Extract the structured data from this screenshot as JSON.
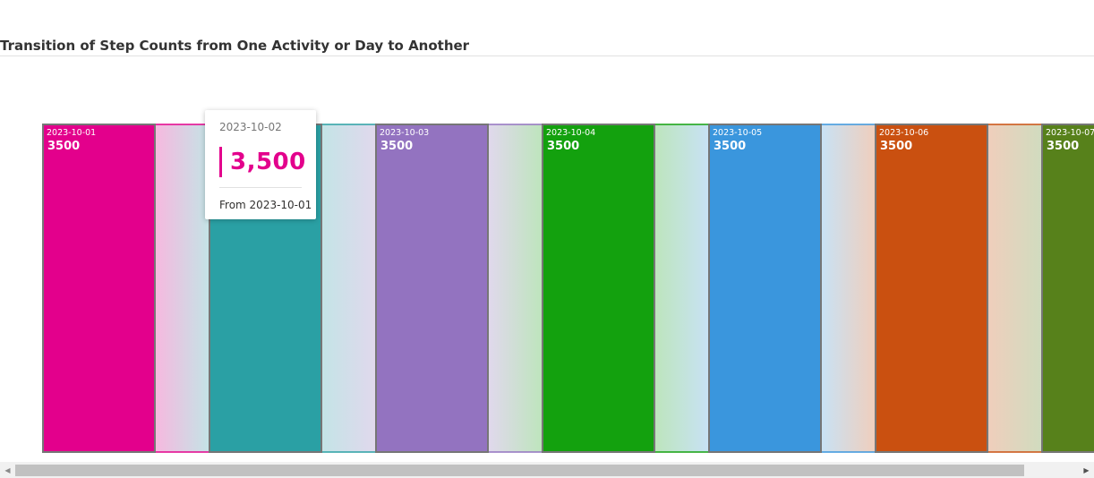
{
  "chart_data": {
    "type": "sankey",
    "title": "Transition of Step Counts from One Activity or Day to Another",
    "nodes": [
      {
        "date": "2023-10-01",
        "value": 3500,
        "color": "#e3008c"
      },
      {
        "date": "2023-10-02",
        "value": 3500,
        "color": "#2aa0a4"
      },
      {
        "date": "2023-10-03",
        "value": 3500,
        "color": "#9373c0"
      },
      {
        "date": "2023-10-04",
        "value": 3500,
        "color": "#13a10e"
      },
      {
        "date": "2023-10-05",
        "value": 3500,
        "color": "#3a96dd"
      },
      {
        "date": "2023-10-06",
        "value": 3500,
        "color": "#ca5010"
      },
      {
        "date": "2023-10-07",
        "value": 3500,
        "color": "#57811b"
      }
    ],
    "links": [
      {
        "from": "2023-10-01",
        "to": "2023-10-02",
        "value": 3500
      },
      {
        "from": "2023-10-02",
        "to": "2023-10-03",
        "value": 3500
      },
      {
        "from": "2023-10-03",
        "to": "2023-10-04",
        "value": 3500
      },
      {
        "from": "2023-10-04",
        "to": "2023-10-05",
        "value": 3500
      },
      {
        "from": "2023-10-05",
        "to": "2023-10-06",
        "value": 3500
      },
      {
        "from": "2023-10-06",
        "to": "2023-10-07",
        "value": 3500
      }
    ]
  },
  "tooltip": {
    "date": "2023-10-02",
    "value": "3,500",
    "from": "From 2023-10-01",
    "accent": "#e3008c"
  },
  "scrollbar": {
    "left_arrow": "◀",
    "right_arrow": "▶"
  }
}
